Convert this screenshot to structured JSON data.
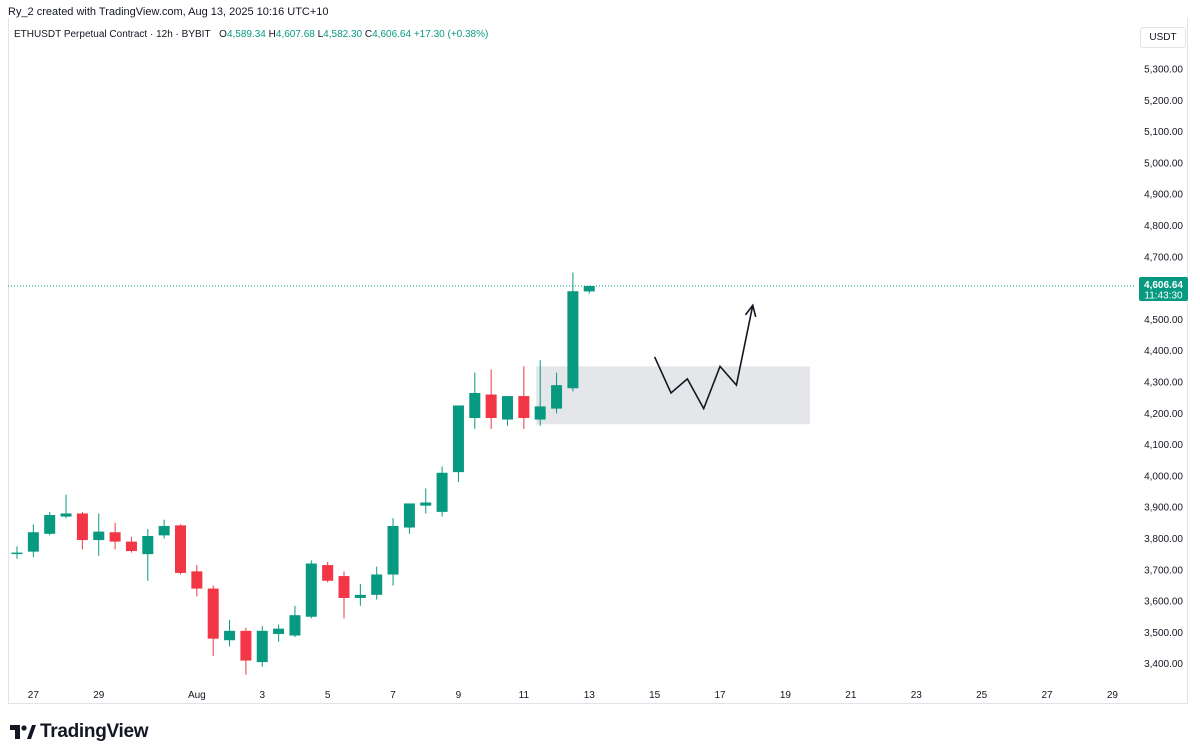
{
  "header": {
    "created_by": "Ry_2 created with TradingView.com, Aug 13, 2025 10:16 UTC+10"
  },
  "legend": {
    "symbol": "ETHUSDT Perpetual Contract · 12h · BYBIT",
    "o_label": "O",
    "o_value": "4,589.34",
    "h_label": "H",
    "h_value": "4,607.68",
    "l_label": "L",
    "l_value": "4,582.30",
    "c_label": "C",
    "c_value": "4,606.64",
    "change": "+17.30 (+0.38%)"
  },
  "price_scale": {
    "unit": "USDT"
  },
  "last_price": {
    "value": "4,606.64",
    "countdown": "11:43:30"
  },
  "colors": {
    "up": "#089981",
    "down": "#f23645",
    "label_bg": "#089981",
    "zone": "#e0e2e6"
  },
  "branding": {
    "logo_text": "TradingView",
    "logo_icon": "tradingview-logo-icon"
  },
  "chart_data": {
    "type": "candlestick",
    "y_ticks": [
      "3,400.00",
      "3,500.00",
      "3,600.00",
      "3,700.00",
      "3,800.00",
      "3,900.00",
      "4,000.00",
      "4,100.00",
      "4,200.00",
      "4,300.00",
      "4,400.00",
      "4,500.00",
      "4,600.00",
      "4,700.00",
      "4,800.00",
      "4,900.00",
      "5,000.00",
      "5,100.00",
      "5,200.00",
      "5,300.00"
    ],
    "ylim": [
      3350,
      5330
    ],
    "x_ticks": [
      {
        "label": "27",
        "bar": 1
      },
      {
        "label": "29",
        "bar": 5
      },
      {
        "label": "Aug",
        "bar": 11
      },
      {
        "label": "3",
        "bar": 15
      },
      {
        "label": "5",
        "bar": 19
      },
      {
        "label": "7",
        "bar": 23
      },
      {
        "label": "9",
        "bar": 27
      },
      {
        "label": "11",
        "bar": 31
      },
      {
        "label": "13",
        "bar": 35
      },
      {
        "label": "15",
        "bar": 39
      },
      {
        "label": "17",
        "bar": 43
      },
      {
        "label": "19",
        "bar": 47
      },
      {
        "label": "21",
        "bar": 51
      },
      {
        "label": "23",
        "bar": 55
      },
      {
        "label": "25",
        "bar": 59
      },
      {
        "label": "27",
        "bar": 63
      },
      {
        "label": "29",
        "bar": 67
      }
    ],
    "candles": [
      [
        3752,
        3775,
        3735,
        3755
      ],
      [
        3758,
        3845,
        3740,
        3820
      ],
      [
        3815,
        3885,
        3810,
        3875
      ],
      [
        3870,
        3940,
        3865,
        3880
      ],
      [
        3880,
        3885,
        3765,
        3795
      ],
      [
        3795,
        3880,
        3745,
        3822
      ],
      [
        3820,
        3850,
        3765,
        3790
      ],
      [
        3790,
        3805,
        3755,
        3760
      ],
      [
        3750,
        3830,
        3665,
        3808
      ],
      [
        3810,
        3860,
        3800,
        3840
      ],
      [
        3842,
        3845,
        3685,
        3690
      ],
      [
        3695,
        3715,
        3615,
        3640
      ],
      [
        3640,
        3650,
        3425,
        3480
      ],
      [
        3475,
        3540,
        3455,
        3505
      ],
      [
        3505,
        3515,
        3365,
        3410
      ],
      [
        3405,
        3520,
        3390,
        3505
      ],
      [
        3495,
        3525,
        3470,
        3512
      ],
      [
        3490,
        3585,
        3485,
        3555
      ],
      [
        3550,
        3730,
        3545,
        3720
      ],
      [
        3715,
        3725,
        3660,
        3665
      ],
      [
        3680,
        3695,
        3545,
        3610
      ],
      [
        3610,
        3655,
        3585,
        3620
      ],
      [
        3620,
        3710,
        3605,
        3685
      ],
      [
        3685,
        3865,
        3650,
        3840
      ],
      [
        3835,
        3910,
        3815,
        3912
      ],
      [
        3905,
        3960,
        3880,
        3915
      ],
      [
        3885,
        4030,
        3870,
        4010
      ],
      [
        4012,
        4220,
        3980,
        4225
      ],
      [
        4185,
        4330,
        4150,
        4265
      ],
      [
        4260,
        4340,
        4150,
        4185
      ],
      [
        4180,
        4255,
        4160,
        4255
      ],
      [
        4255,
        4350,
        4150,
        4185
      ],
      [
        4180,
        4370,
        4160,
        4222
      ],
      [
        4215,
        4330,
        4200,
        4290
      ],
      [
        4280,
        4650,
        4270,
        4590
      ],
      [
        4589.34,
        4607.68,
        4582.3,
        4606.64
      ]
    ],
    "zone": {
      "bar_start": 32,
      "bar_end": 48.5,
      "price_top": 4350,
      "price_bottom": 4165
    },
    "projection_path": [
      [
        39,
        4380
      ],
      [
        40,
        4265
      ],
      [
        41,
        4310
      ],
      [
        42,
        4215
      ],
      [
        43,
        4350
      ],
      [
        44,
        4290
      ],
      [
        45,
        4545
      ]
    ],
    "last_price_value": 4606.64
  }
}
